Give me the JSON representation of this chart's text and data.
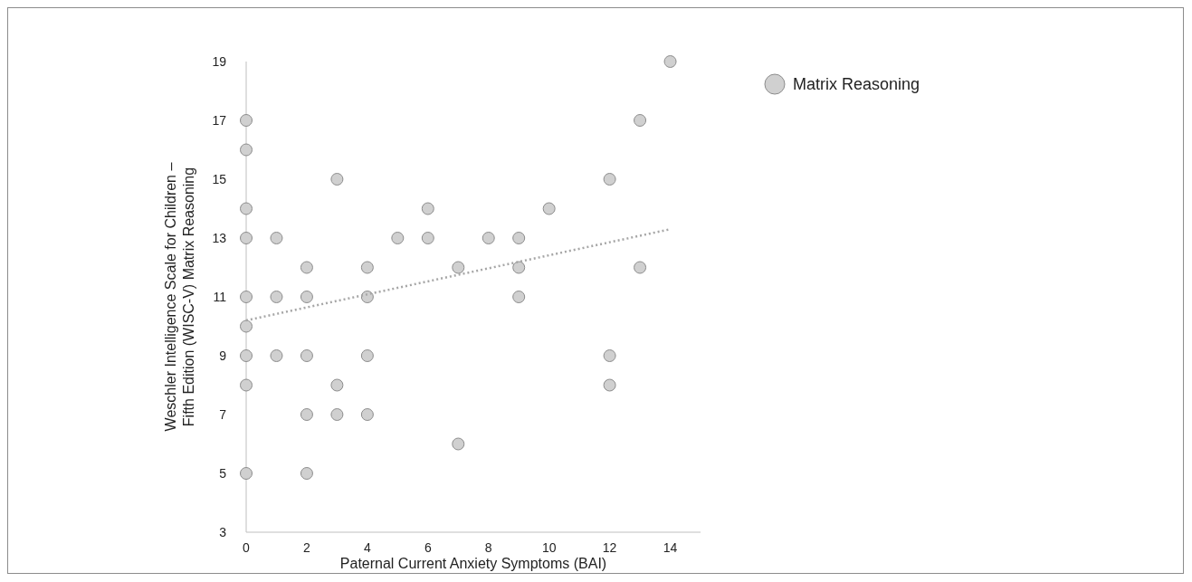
{
  "chart_data": {
    "type": "scatter",
    "xlabel": "Paternal Current Anxiety Symptoms (BAI)",
    "ylabel": "Weschler Intelligence Scale for Children –\nFifth Edition (WISC-V) Matrix Reasoning",
    "xlim": [
      0,
      15
    ],
    "ylim": [
      3,
      19
    ],
    "xticks": [
      0,
      2,
      4,
      6,
      8,
      10,
      12,
      14
    ],
    "yticks": [
      3,
      5,
      7,
      9,
      11,
      13,
      15,
      17,
      19
    ],
    "grid": false,
    "legend": "top right",
    "marker": "circle",
    "series": [
      {
        "name": "Matrix Reasoning",
        "type": "scatter",
        "color": "#d0d0d0",
        "x": [
          0,
          0,
          0,
          0,
          0,
          0,
          0,
          0,
          0,
          1,
          1,
          1,
          2,
          2,
          2,
          2,
          2,
          3,
          3,
          3,
          4,
          4,
          4,
          4,
          5,
          6,
          6,
          7,
          7,
          8,
          9,
          9,
          9,
          10,
          12,
          12,
          12,
          13,
          13,
          14
        ],
        "values": [
          17,
          16,
          14,
          13,
          11,
          10,
          9,
          8,
          5,
          13,
          11,
          9,
          12,
          11,
          9,
          7,
          5,
          15,
          8,
          7,
          12,
          11,
          9,
          7,
          13,
          14,
          13,
          12,
          6,
          13,
          13,
          12,
          11,
          14,
          15,
          9,
          8,
          17,
          12,
          19
        ]
      },
      {
        "type": "line",
        "color": "#a6a6a6",
        "line_style": "dotted",
        "marker": "none",
        "x": [
          0,
          14
        ],
        "values": [
          10.2,
          13.3
        ]
      }
    ]
  }
}
